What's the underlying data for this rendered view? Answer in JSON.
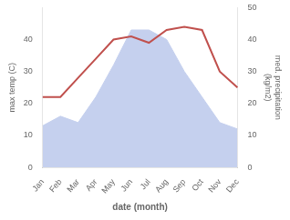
{
  "chart_data": {
    "type": "line",
    "categories": [
      "Jan",
      "Feb",
      "Mar",
      "Apr",
      "May",
      "Jun",
      "Jul",
      "Aug",
      "Sep",
      "Oct",
      "Nov",
      "Dec"
    ],
    "series": [
      {
        "type": "area",
        "color": "#c5d0ee",
        "axis": "y2",
        "values": [
          13,
          16,
          14,
          22,
          32,
          43,
          43,
          40,
          30,
          22,
          14,
          12
        ]
      },
      {
        "type": "line",
        "color": "#c0504d",
        "values": [
          22,
          22,
          28,
          34,
          40,
          41,
          39,
          43,
          44,
          43,
          30,
          25
        ]
      }
    ],
    "x_label": "date (month)",
    "y_label": "max temp (C)",
    "y2_label": "med. precipitation\n(kg/m2)",
    "ylim": [
      0,
      50
    ],
    "yticks": [
      0,
      10,
      20,
      30,
      40
    ],
    "y2lim": [
      0,
      50
    ],
    "y2ticks": [
      0,
      10,
      20,
      30,
      40,
      50
    ],
    "grid": false
  }
}
